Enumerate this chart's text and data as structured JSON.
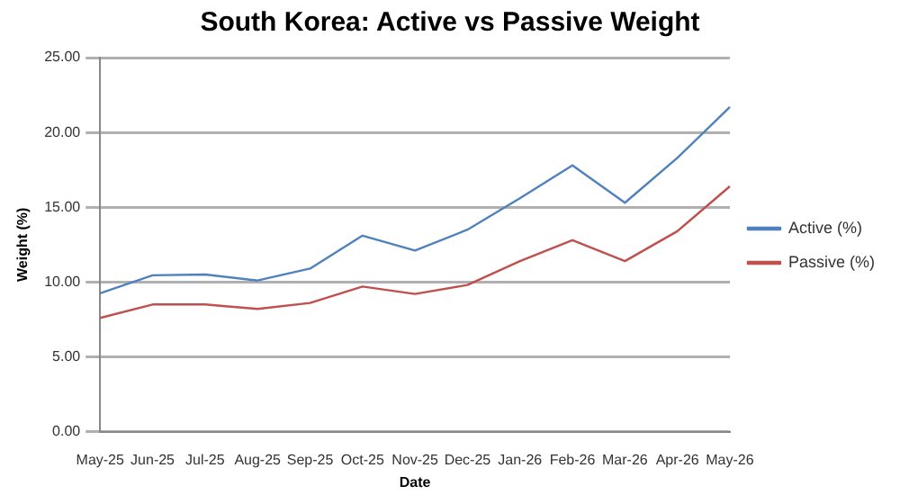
{
  "chart_data": {
    "type": "line",
    "title": "South Korea: Active vs Passive Weight",
    "xlabel": "Date",
    "ylabel": "Weight (%)",
    "categories": [
      "May-25",
      "Jun-25",
      "Jul-25",
      "Aug-25",
      "Sep-25",
      "Oct-25",
      "Nov-25",
      "Dec-25",
      "Jan-26",
      "Feb-26",
      "Mar-26",
      "Apr-26",
      "May-26"
    ],
    "series": [
      {
        "name": "Active (%)",
        "color": "#4f81bd",
        "values": [
          9.25,
          10.45,
          10.5,
          10.1,
          10.9,
          13.1,
          12.1,
          13.5,
          15.6,
          17.8,
          15.3,
          18.3,
          21.7
        ]
      },
      {
        "name": "Passive (%)",
        "color": "#c0504d",
        "values": [
          7.6,
          8.5,
          8.5,
          8.2,
          8.6,
          9.7,
          9.2,
          9.8,
          11.4,
          12.8,
          11.4,
          13.4,
          16.4
        ]
      }
    ],
    "ylim": [
      0,
      25
    ],
    "yticks": [
      {
        "value": 0,
        "label": "0.00"
      },
      {
        "value": 5,
        "label": "5.00"
      },
      {
        "value": 10,
        "label": "10.00"
      },
      {
        "value": 15,
        "label": "15.00"
      },
      {
        "value": 20,
        "label": "20.00"
      },
      {
        "value": 25,
        "label": "25.00"
      }
    ],
    "grid": "y",
    "legend": "right",
    "marker": "none",
    "line_style": "solid"
  }
}
